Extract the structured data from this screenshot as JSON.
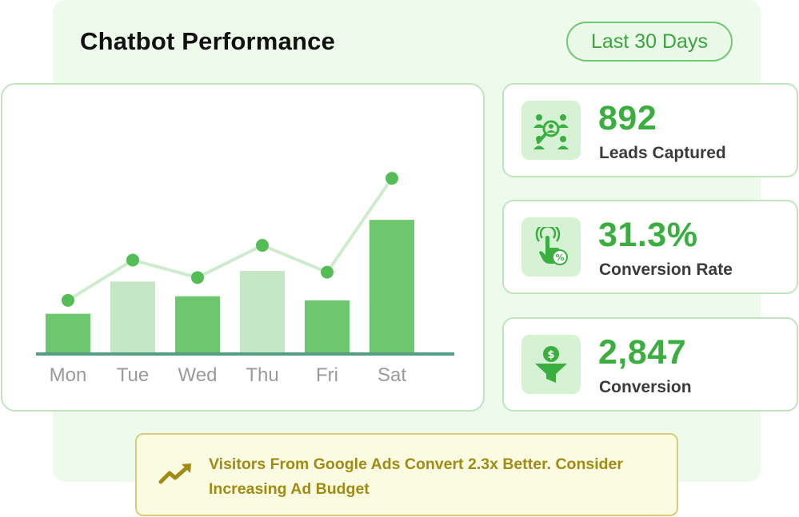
{
  "header": {
    "title": "Chatbot Performance",
    "range_label": "Last 30 Days"
  },
  "chart_data": {
    "type": "bar",
    "categories": [
      "Mon",
      "Tue",
      "Wed",
      "Thu",
      "Fri",
      "Sat"
    ],
    "series": [
      {
        "values": [
          30,
          54,
          43,
          62,
          40,
          100
        ],
        "kind": "bar"
      },
      {
        "values": [
          40,
          70,
          57,
          81,
          61,
          131
        ],
        "kind": "line"
      }
    ],
    "ylim": [
      0,
      140
    ],
    "grid": false,
    "colors": {
      "bar_primary": "#6dc76c",
      "bar_secondary": "#c6e7c5",
      "line": "#cdeccc",
      "point": "#55bd55",
      "baseline": "#529f86",
      "tick": "#9a9a9a"
    },
    "highlight_pattern": [
      "primary",
      "secondary",
      "primary",
      "secondary",
      "primary",
      "primary"
    ]
  },
  "stats": [
    {
      "value": "892",
      "label": "Leads Captured",
      "icon": "leads-icon"
    },
    {
      "value": "31.3%",
      "label": "Conversion Rate",
      "icon": "conversion-rate-icon"
    },
    {
      "value": "2,847",
      "label": "Conversion",
      "icon": "funnel-dollar-icon"
    }
  ],
  "insight": {
    "text": "Visitors From Google Ads Convert 2.3x Better. Consider Increasing Ad Budget",
    "icon": "trend-up-icon",
    "color": "#a08b16"
  }
}
